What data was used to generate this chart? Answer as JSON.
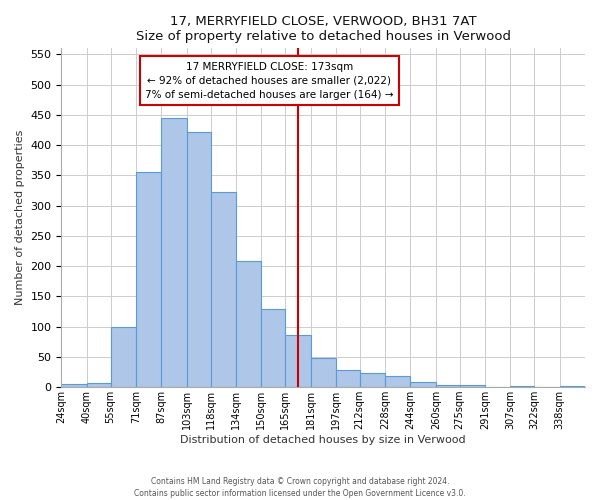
{
  "title": "17, MERRYFIELD CLOSE, VERWOOD, BH31 7AT",
  "subtitle": "Size of property relative to detached houses in Verwood",
  "xlabel": "Distribution of detached houses by size in Verwood",
  "ylabel": "Number of detached properties",
  "bin_labels": [
    "24sqm",
    "40sqm",
    "55sqm",
    "71sqm",
    "87sqm",
    "103sqm",
    "118sqm",
    "134sqm",
    "150sqm",
    "165sqm",
    "181sqm",
    "197sqm",
    "212sqm",
    "228sqm",
    "244sqm",
    "260sqm",
    "275sqm",
    "291sqm",
    "307sqm",
    "322sqm",
    "338sqm"
  ],
  "bar_heights": [
    5,
    7,
    100,
    355,
    445,
    422,
    322,
    209,
    129,
    86,
    48,
    29,
    24,
    18,
    8,
    4,
    3,
    1,
    2,
    0,
    2
  ],
  "bar_color": "#aec6e8",
  "bar_edge_color": "#5b9bd5",
  "vline_x": 173,
  "vline_color": "#cc0000",
  "annotation_title": "17 MERRYFIELD CLOSE: 173sqm",
  "annotation_line1": "← 92% of detached houses are smaller (2,022)",
  "annotation_line2": "7% of semi-detached houses are larger (164) →",
  "annotation_box_color": "#ffffff",
  "annotation_box_edge": "#cc0000",
  "ylim": [
    0,
    560
  ],
  "yticks": [
    0,
    50,
    100,
    150,
    200,
    250,
    300,
    350,
    400,
    450,
    500,
    550
  ],
  "footer_line1": "Contains HM Land Registry data © Crown copyright and database right 2024.",
  "footer_line2": "Contains public sector information licensed under the Open Government Licence v3.0.",
  "bin_edges": [
    24,
    40,
    55,
    71,
    87,
    103,
    118,
    134,
    150,
    165,
    181,
    197,
    212,
    228,
    244,
    260,
    275,
    291,
    307,
    322,
    338,
    354
  ]
}
